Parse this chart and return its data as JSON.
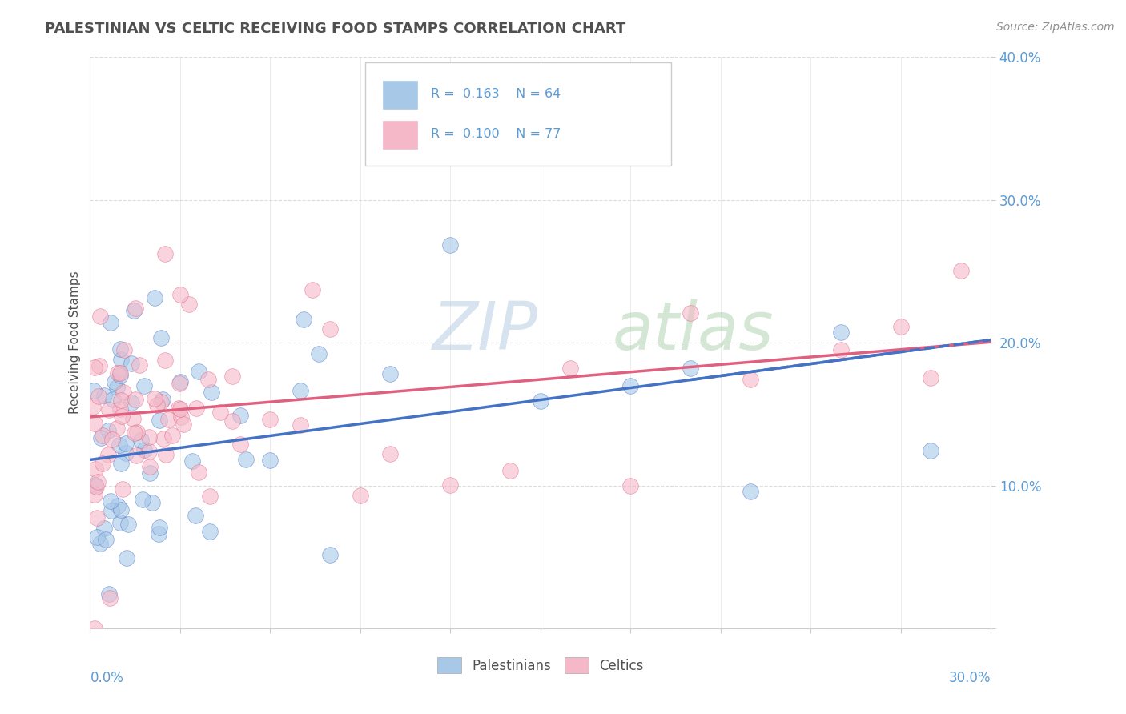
{
  "title": "PALESTINIAN VS CELTIC RECEIVING FOOD STAMPS CORRELATION CHART",
  "source": "Source: ZipAtlas.com",
  "ylabel": "Receiving Food Stamps",
  "xmin": 0.0,
  "xmax": 0.3,
  "ymin": 0.0,
  "ymax": 0.4,
  "blue_color": "#a8c8e8",
  "pink_color": "#f5b8c8",
  "blue_line_color": "#4472c4",
  "pink_line_color": "#e06080",
  "title_color": "#505050",
  "source_color": "#909090",
  "axis_label_color": "#5b9bd5",
  "watermark_color": "#c8daf0",
  "palestinians_R": 0.163,
  "palestinians_N": 64,
  "celtics_R": 0.1,
  "celtics_N": 77,
  "pal_line_intercept": 0.118,
  "pal_line_slope": 0.28,
  "cel_line_intercept": 0.148,
  "cel_line_slope": 0.175
}
